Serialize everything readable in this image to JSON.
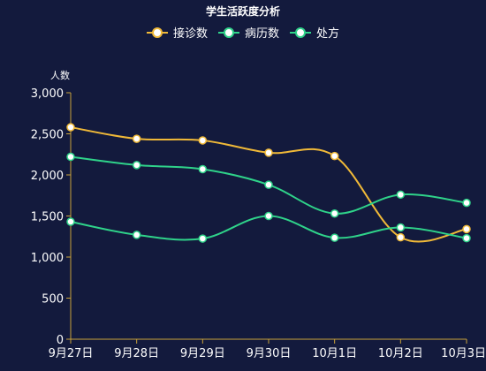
{
  "chart_data": {
    "type": "line",
    "title": "学生活跃度分析",
    "ylabel": "人数",
    "categories": [
      "9月27日",
      "9月28日",
      "9月29日",
      "9月30日",
      "10月1日",
      "10月2日",
      "10月3日"
    ],
    "ylim": [
      0,
      3000
    ],
    "yticks": [
      0,
      500,
      1000,
      1500,
      2000,
      2500,
      3000
    ],
    "ytick_labels": [
      "0",
      "500",
      "1,000",
      "1,500",
      "2,000",
      "2,500",
      "3,000"
    ],
    "legend_position": "top-center",
    "smooth": true,
    "series": [
      {
        "name": "接诊数",
        "color": "#f0b938",
        "values": [
          2580,
          2440,
          2420,
          2270,
          2230,
          1240,
          1340
        ]
      },
      {
        "name": "病历数",
        "color": "#2fd38a",
        "values": [
          2220,
          2120,
          2070,
          1880,
          1530,
          1760,
          1660
        ]
      },
      {
        "name": "处方",
        "color": "#2fd38a",
        "values": [
          1430,
          1270,
          1225,
          1500,
          1235,
          1360,
          1230
        ]
      }
    ],
    "colors": {
      "background": "#131a3d",
      "axis": "#c9a23a",
      "text": "#ffffff"
    }
  }
}
